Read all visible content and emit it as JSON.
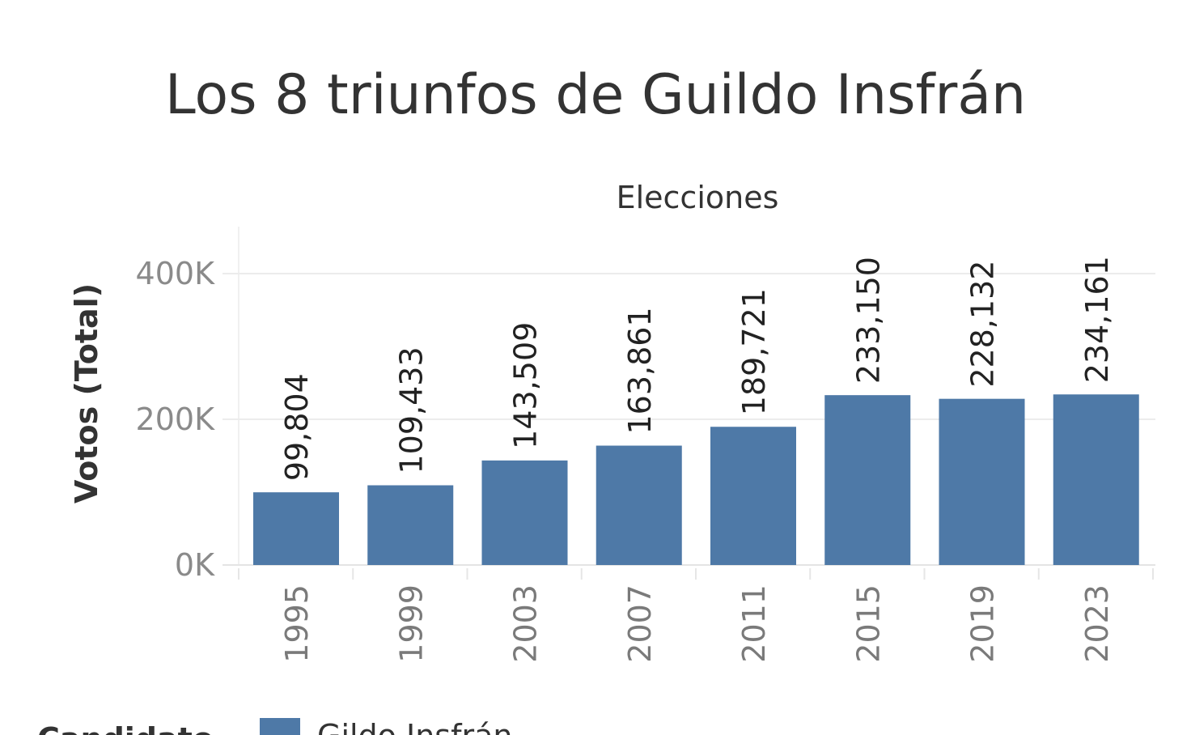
{
  "chart_data": {
    "type": "bar",
    "title": "Los 8 triunfos de Guildo Insfrán",
    "column_header": "Elecciones",
    "ylabel": "Votos (Total)",
    "ylim": [
      0,
      400000
    ],
    "yticks": [
      0,
      200000,
      400000
    ],
    "ytick_labels": [
      "0K",
      "200K",
      "400K"
    ],
    "grid": true,
    "categories": [
      "1995",
      "1999",
      "2003",
      "2007",
      "2011",
      "2015",
      "2019",
      "2023"
    ],
    "series": [
      {
        "name": "Gildo Insfrán",
        "values": [
          99804,
          109433,
          143509,
          163861,
          189721,
          233150,
          228132,
          234161
        ],
        "value_labels": [
          "99,804",
          "109,433",
          "143,509",
          "163,861",
          "189,721",
          "233,150",
          "228,132",
          "234,161"
        ]
      }
    ],
    "legend": {
      "title": "Candidato",
      "position": "bottom-left"
    },
    "colors": {
      "bar": "#4e79a7",
      "grid": "#ececec"
    }
  }
}
